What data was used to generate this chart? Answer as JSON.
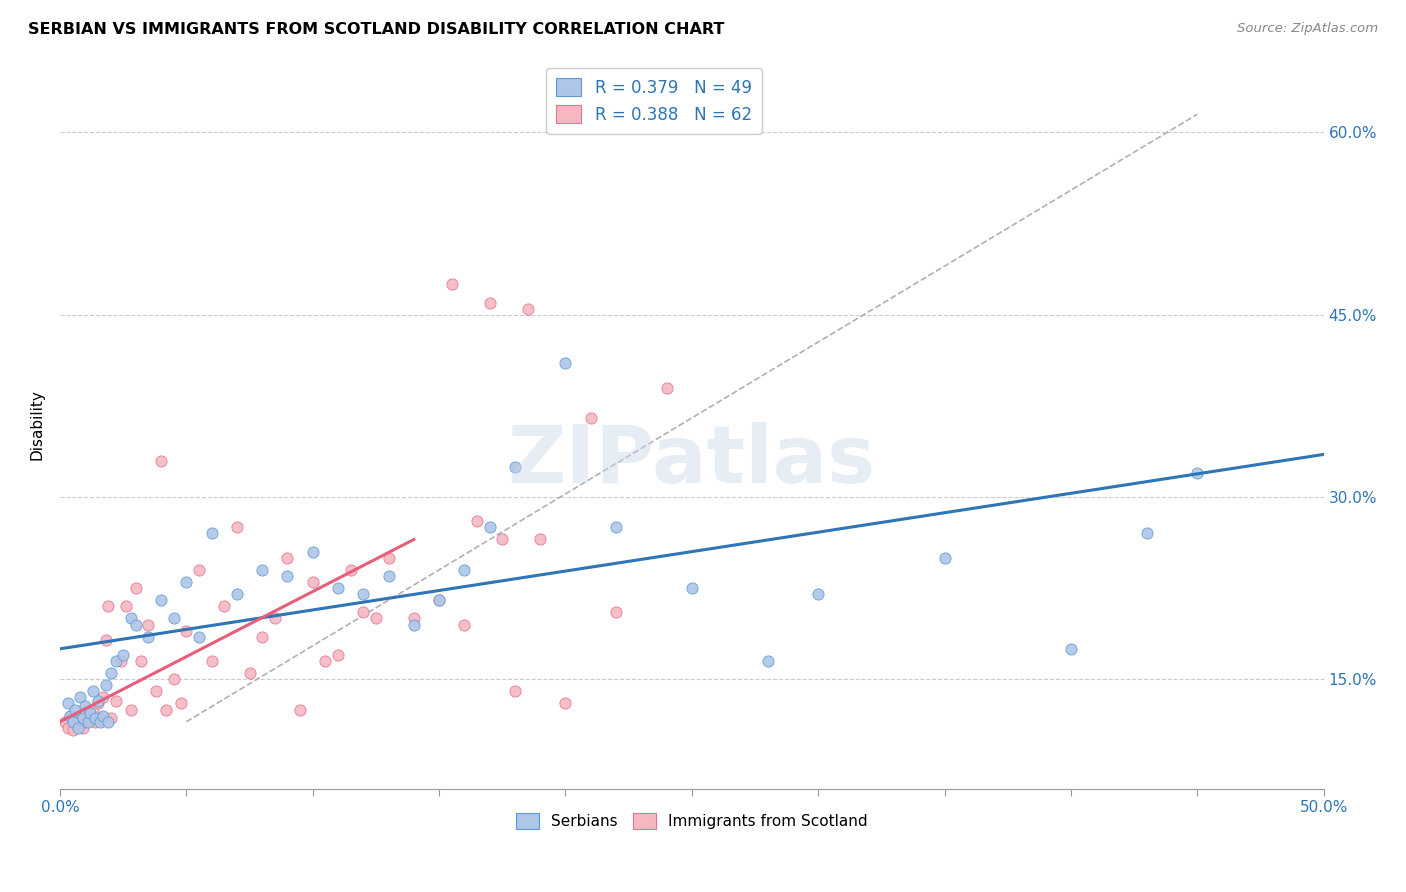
{
  "title": "SERBIAN VS IMMIGRANTS FROM SCOTLAND DISABILITY CORRELATION CHART",
  "source": "Source: ZipAtlas.com",
  "ylabel": "Disability",
  "yticks": [
    "15.0%",
    "30.0%",
    "45.0%",
    "60.0%"
  ],
  "ytick_vals": [
    0.15,
    0.3,
    0.45,
    0.6
  ],
  "xlim": [
    0.0,
    0.5
  ],
  "ylim": [
    0.06,
    0.66
  ],
  "legend_entries": [
    {
      "label": "R = 0.379   N = 49",
      "color": "#aec6e8"
    },
    {
      "label": "R = 0.388   N = 62",
      "color": "#f4b8c1"
    }
  ],
  "legend_labels": [
    "Serbians",
    "Immigrants from Scotland"
  ],
  "serbian_color": "#aec6e8",
  "scotland_color": "#f4b8c1",
  "serbian_edge": "#5b9bd5",
  "scotland_edge": "#e87090",
  "trendline_serbian_color": "#2e75b6",
  "trendline_scotland_color": "#e85d7a",
  "watermark": "ZIPatlas",
  "serbian_x": [
    0.003,
    0.004,
    0.005,
    0.006,
    0.007,
    0.008,
    0.009,
    0.01,
    0.011,
    0.012,
    0.013,
    0.014,
    0.015,
    0.016,
    0.017,
    0.018,
    0.019,
    0.02,
    0.022,
    0.025,
    0.028,
    0.03,
    0.035,
    0.04,
    0.045,
    0.05,
    0.055,
    0.06,
    0.07,
    0.08,
    0.09,
    0.1,
    0.11,
    0.12,
    0.13,
    0.14,
    0.15,
    0.16,
    0.17,
    0.18,
    0.2,
    0.22,
    0.25,
    0.28,
    0.3,
    0.35,
    0.4,
    0.43,
    0.45
  ],
  "serbian_y": [
    0.13,
    0.12,
    0.115,
    0.125,
    0.11,
    0.135,
    0.118,
    0.128,
    0.115,
    0.122,
    0.14,
    0.118,
    0.132,
    0.115,
    0.12,
    0.145,
    0.115,
    0.155,
    0.165,
    0.17,
    0.2,
    0.195,
    0.185,
    0.215,
    0.2,
    0.23,
    0.185,
    0.27,
    0.22,
    0.24,
    0.235,
    0.255,
    0.225,
    0.22,
    0.235,
    0.195,
    0.215,
    0.24,
    0.275,
    0.325,
    0.41,
    0.275,
    0.225,
    0.165,
    0.22,
    0.25,
    0.175,
    0.27,
    0.32
  ],
  "scotland_x": [
    0.002,
    0.003,
    0.004,
    0.005,
    0.006,
    0.007,
    0.008,
    0.009,
    0.01,
    0.011,
    0.012,
    0.013,
    0.014,
    0.015,
    0.016,
    0.017,
    0.018,
    0.019,
    0.02,
    0.022,
    0.024,
    0.026,
    0.028,
    0.03,
    0.032,
    0.035,
    0.038,
    0.04,
    0.042,
    0.045,
    0.048,
    0.05,
    0.055,
    0.06,
    0.065,
    0.07,
    0.075,
    0.08,
    0.085,
    0.09,
    0.095,
    0.1,
    0.105,
    0.11,
    0.115,
    0.12,
    0.125,
    0.13,
    0.14,
    0.15,
    0.155,
    0.16,
    0.165,
    0.17,
    0.175,
    0.18,
    0.185,
    0.19,
    0.2,
    0.21,
    0.22,
    0.24
  ],
  "scotland_y": [
    0.115,
    0.11,
    0.12,
    0.108,
    0.115,
    0.112,
    0.118,
    0.11,
    0.115,
    0.12,
    0.118,
    0.125,
    0.115,
    0.13,
    0.118,
    0.135,
    0.182,
    0.21,
    0.118,
    0.132,
    0.165,
    0.21,
    0.125,
    0.225,
    0.165,
    0.195,
    0.14,
    0.33,
    0.125,
    0.15,
    0.13,
    0.19,
    0.24,
    0.165,
    0.21,
    0.275,
    0.155,
    0.185,
    0.2,
    0.25,
    0.125,
    0.23,
    0.165,
    0.17,
    0.24,
    0.205,
    0.2,
    0.25,
    0.2,
    0.215,
    0.475,
    0.195,
    0.28,
    0.46,
    0.265,
    0.14,
    0.455,
    0.265,
    0.13,
    0.365,
    0.205,
    0.39
  ]
}
